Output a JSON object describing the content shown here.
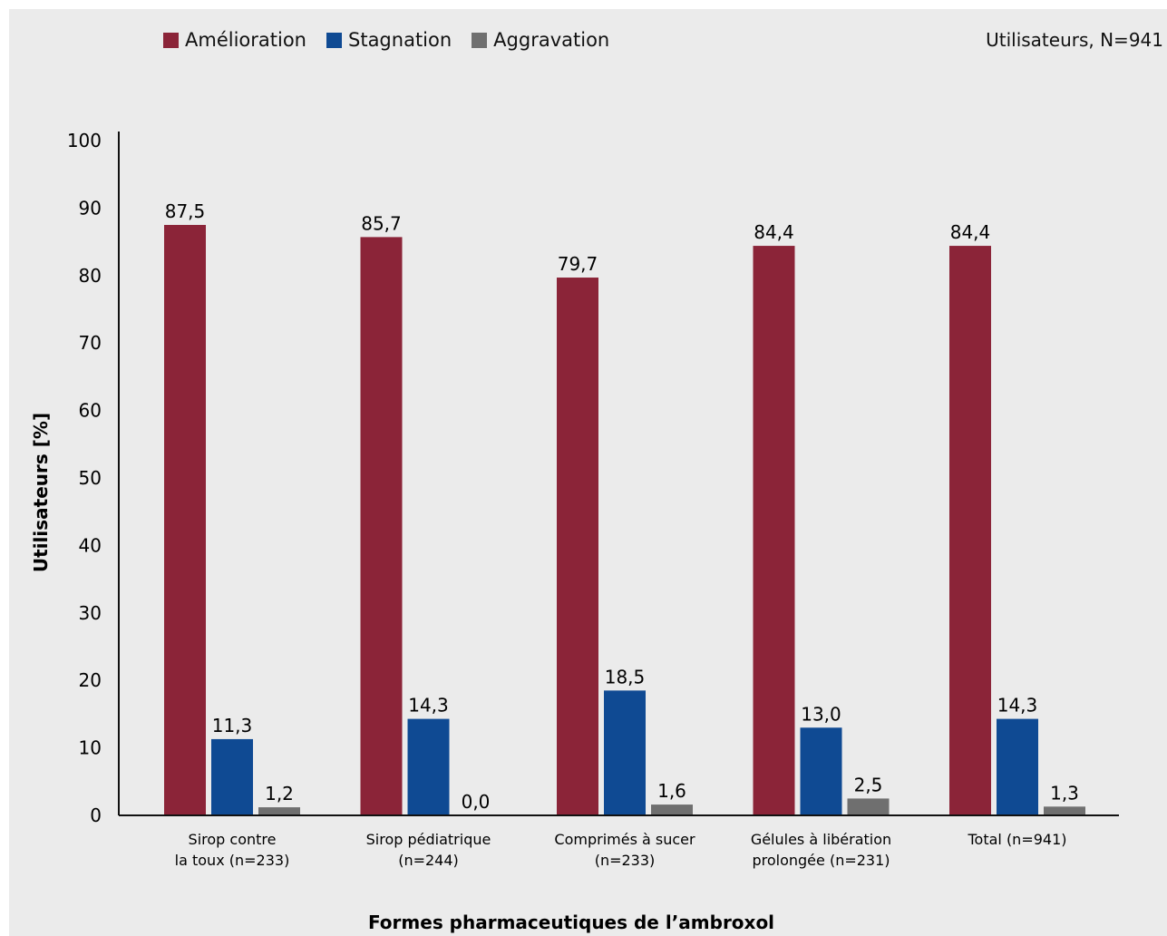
{
  "chart_data": {
    "type": "bar",
    "title": "",
    "note": "Utilisateurs, N=941",
    "xlabel": "Formes pharmaceutiques de l’ambroxol",
    "ylabel": "Utilisateurs [%]",
    "ylim": [
      0,
      100
    ],
    "yticks": [
      "0",
      "10",
      "20",
      "30",
      "40",
      "50",
      "60",
      "70",
      "80",
      "90",
      "100"
    ],
    "legend_position": "top-left",
    "grid": false,
    "categories": [
      [
        "Sirop contre",
        "la toux  (n=233)"
      ],
      [
        "Sirop pédiatrique",
        "(n=244)"
      ],
      [
        "Comprimés à sucer",
        "(n=233)"
      ],
      [
        "Gélules à libération",
        "prolongée (n=231)"
      ],
      [
        "Total (n=941)",
        ""
      ]
    ],
    "series": [
      {
        "name": "Amélioration",
        "color": "#8b2438",
        "values": [
          87.5,
          85.7,
          79.7,
          84.4,
          84.4
        ],
        "labels": [
          "87,5",
          "85,7",
          "79,7",
          "84,4",
          "84,4"
        ]
      },
      {
        "name": "Stagnation",
        "color": "#0f4a93",
        "values": [
          11.3,
          14.3,
          18.5,
          13.0,
          14.3
        ],
        "labels": [
          "11,3",
          "14,3",
          "18,5",
          "13,0",
          "14,3"
        ]
      },
      {
        "name": "Aggravation",
        "color": "#6f6f6f",
        "values": [
          1.2,
          0.0,
          1.6,
          2.5,
          1.3
        ],
        "labels": [
          "1,2",
          "0,0",
          "1,6",
          "2,5",
          "1,3"
        ]
      }
    ]
  }
}
